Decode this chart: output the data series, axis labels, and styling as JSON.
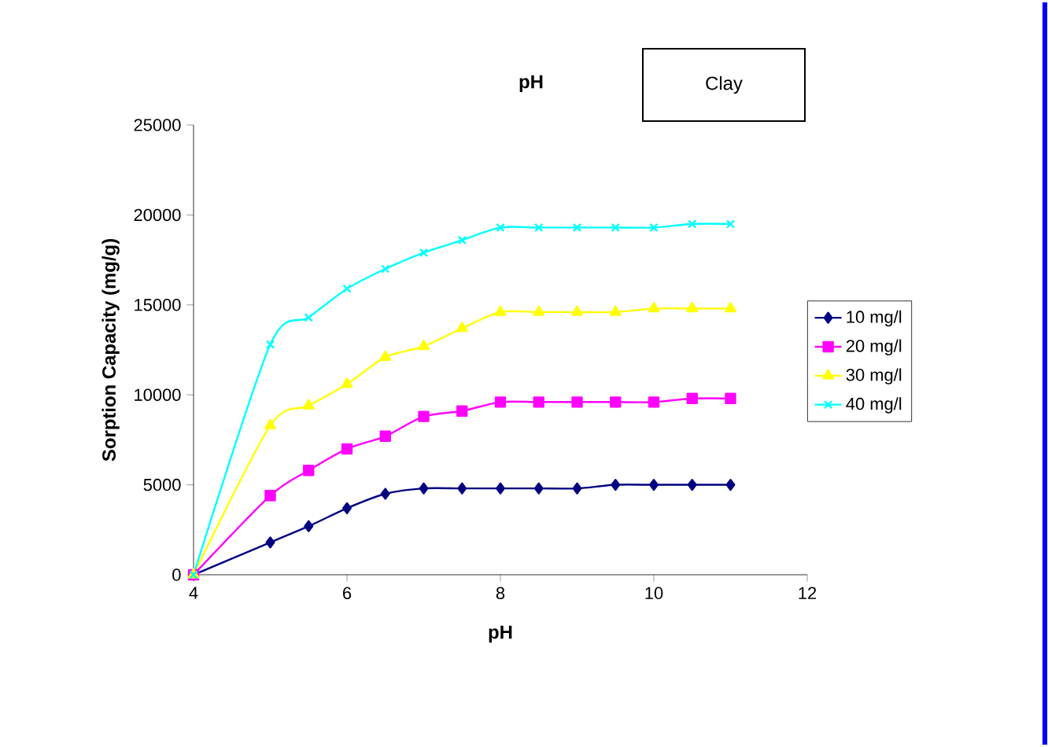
{
  "chart_data": {
    "type": "line",
    "title": "pH",
    "xlabel": "pH",
    "ylabel": "Sorption Capacity (mg/g)",
    "annotations": [
      "Clay"
    ],
    "x": [
      4,
      5,
      5.5,
      6,
      6.5,
      7,
      7.5,
      8,
      8.5,
      9,
      9.5,
      10,
      10.5,
      11
    ],
    "series": [
      {
        "name": "10 mg/l",
        "color": "#000080",
        "marker": "diamond",
        "values": [
          0,
          1800,
          2700,
          3700,
          4500,
          4800,
          4800,
          4800,
          4800,
          4800,
          5000,
          5000,
          5000,
          5000
        ]
      },
      {
        "name": "20 mg/l",
        "color": "#ff00ff",
        "marker": "square",
        "values": [
          0,
          4400,
          5800,
          7000,
          7700,
          8800,
          9100,
          9600,
          9600,
          9600,
          9600,
          9600,
          9800,
          9800
        ]
      },
      {
        "name": "30 mg/l",
        "color": "#ffff00",
        "marker": "triangle",
        "values": [
          0,
          8300,
          9400,
          10600,
          12100,
          12700,
          13700,
          14600,
          14600,
          14600,
          14600,
          14800,
          14800,
          14800
        ]
      },
      {
        "name": "40 mg/l",
        "color": "#00ffff",
        "marker": "cross",
        "values": [
          0,
          12800,
          14300,
          15900,
          17000,
          17900,
          18600,
          19300,
          19300,
          19300,
          19300,
          19300,
          19500,
          19500
        ]
      }
    ],
    "xlim": [
      4,
      12
    ],
    "xticks": [
      4,
      6,
      8,
      10,
      12
    ],
    "ylim": [
      0,
      25000
    ],
    "yticks": [
      0,
      5000,
      10000,
      15000,
      20000,
      25000
    ],
    "grid": false,
    "legend": "right",
    "line_style": "solid"
  }
}
